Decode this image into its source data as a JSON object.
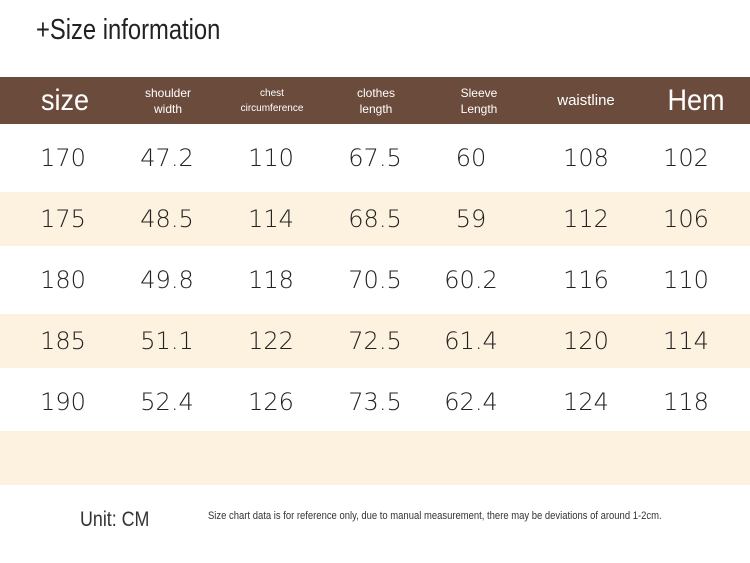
{
  "title": "+Size information",
  "columns": [
    {
      "label": "size"
    },
    {
      "label": "shoulder\nwidth"
    },
    {
      "label": "chest\ncircumference"
    },
    {
      "label": "clothes\nlength"
    },
    {
      "label": "Sleeve\nLength"
    },
    {
      "label": "waistline"
    },
    {
      "label": "Hem"
    }
  ],
  "rows": [
    [
      "170",
      "47.2",
      "110",
      "67.5",
      "60",
      "108",
      "102"
    ],
    [
      "175",
      "48.5",
      "114",
      "68.5",
      "59",
      "112",
      "106"
    ],
    [
      "180",
      "49.8",
      "118",
      "70.5",
      "60.2",
      "116",
      "110"
    ],
    [
      "185",
      "51.1",
      "122",
      "72.5",
      "61.4",
      "120",
      "114"
    ],
    [
      "190",
      "52.4",
      "126",
      "73.5",
      "62.4",
      "124",
      "118"
    ]
  ],
  "unit": "Unit: CM",
  "note": "Size chart data is for reference only, due to manual measurement, there may be deviations of around 1-2cm.",
  "colors": {
    "header_bg": "#6b4b3c",
    "row_tint": "#fdf1e0"
  }
}
